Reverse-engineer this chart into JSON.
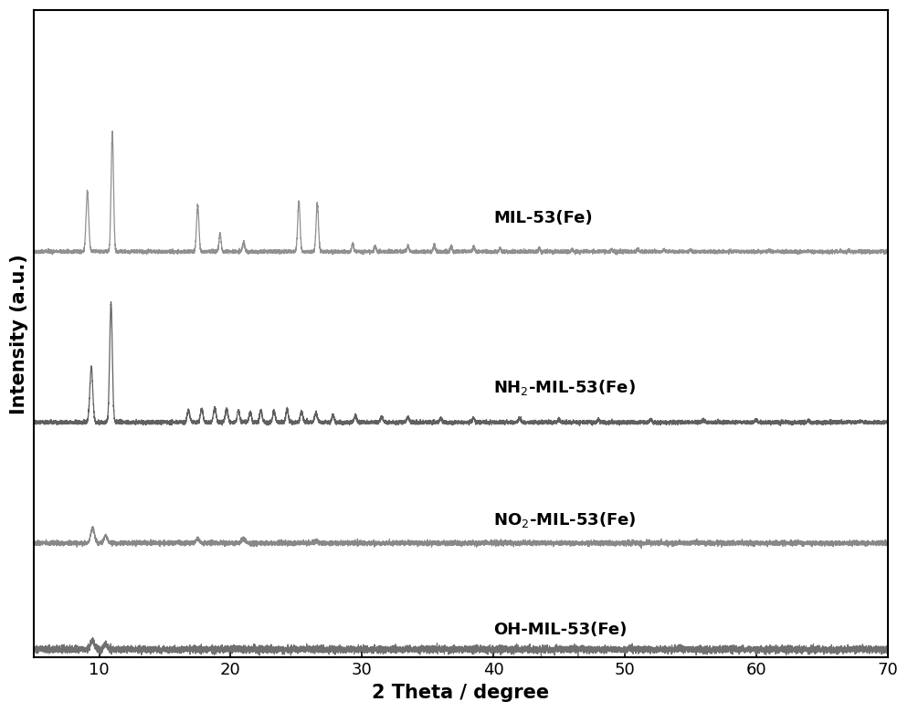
{
  "xlabel": "2 Theta / degree",
  "ylabel": "Intensity (a.u.)",
  "xlim": [
    5,
    70
  ],
  "ylim": [
    -0.05,
    4.5
  ],
  "xticks": [
    10,
    20,
    30,
    40,
    50,
    60,
    70
  ],
  "background_color": "#ffffff",
  "label_fontsize": 13,
  "axis_fontsize": 15,
  "tick_fontsize": 13,
  "line_colors": [
    "#909090",
    "#606060",
    "#888888",
    "#707070"
  ],
  "offsets": [
    2.8,
    1.6,
    0.75,
    0.0
  ],
  "noise_seed": 42
}
